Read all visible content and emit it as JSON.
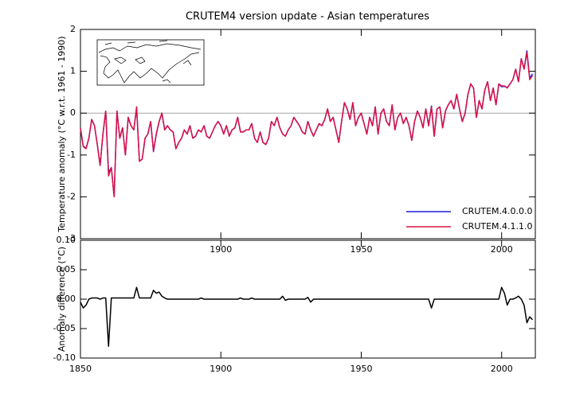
{
  "chart_data": [
    {
      "type": "line",
      "title": "CRUTEM4 version update - Asian temperatures",
      "y_label": "Temperature anomaly (°C w.r.t. 1961 - 1990)",
      "x": [
        1850,
        1851,
        1852,
        1853,
        1854,
        1855,
        1856,
        1857,
        1858,
        1859,
        1860,
        1861,
        1862,
        1863,
        1864,
        1865,
        1866,
        1867,
        1868,
        1869,
        1870,
        1871,
        1872,
        1873,
        1874,
        1875,
        1876,
        1877,
        1878,
        1879,
        1880,
        1881,
        1882,
        1883,
        1884,
        1885,
        1886,
        1887,
        1888,
        1889,
        1890,
        1891,
        1892,
        1893,
        1894,
        1895,
        1896,
        1897,
        1898,
        1899,
        1900,
        1901,
        1902,
        1903,
        1904,
        1905,
        1906,
        1907,
        1908,
        1909,
        1910,
        1911,
        1912,
        1913,
        1914,
        1915,
        1916,
        1917,
        1918,
        1919,
        1920,
        1921,
        1922,
        1923,
        1924,
        1925,
        1926,
        1927,
        1928,
        1929,
        1930,
        1931,
        1932,
        1933,
        1934,
        1935,
        1936,
        1937,
        1938,
        1939,
        1940,
        1941,
        1942,
        1943,
        1944,
        1945,
        1946,
        1947,
        1948,
        1949,
        1950,
        1951,
        1952,
        1953,
        1954,
        1955,
        1956,
        1957,
        1958,
        1959,
        1960,
        1961,
        1962,
        1963,
        1964,
        1965,
        1966,
        1967,
        1968,
        1969,
        1970,
        1971,
        1972,
        1973,
        1974,
        1975,
        1976,
        1977,
        1978,
        1979,
        1980,
        1981,
        1982,
        1983,
        1984,
        1985,
        1986,
        1987,
        1988,
        1989,
        1990,
        1991,
        1992,
        1993,
        1994,
        1995,
        1996,
        1997,
        1998,
        1999,
        2000,
        2001,
        2002,
        2003,
        2004,
        2005,
        2006,
        2007,
        2008,
        2009,
        2010,
        2011
      ],
      "series": [
        {
          "name": "CRUTEM.4.0.0.0",
          "color": "#1f1fdd",
          "values": [
            -0.36,
            -0.79,
            -0.84,
            -0.6,
            -0.15,
            -0.3,
            -0.75,
            -1.25,
            -0.5,
            0.05,
            -1.42,
            -1.3,
            -2.0,
            0.05,
            -0.6,
            -0.35,
            -1.0,
            -0.1,
            -0.3,
            -0.4,
            0.13,
            -1.15,
            -1.1,
            -0.6,
            -0.5,
            -0.2,
            -0.92,
            -0.51,
            -0.21,
            0.0,
            -0.4,
            -0.3,
            -0.4,
            -0.45,
            -0.85,
            -0.7,
            -0.6,
            -0.4,
            -0.5,
            -0.3,
            -0.6,
            -0.55,
            -0.4,
            -0.45,
            -0.3,
            -0.55,
            -0.6,
            -0.45,
            -0.3,
            -0.2,
            -0.3,
            -0.5,
            -0.3,
            -0.55,
            -0.4,
            -0.35,
            -0.1,
            -0.45,
            -0.45,
            -0.4,
            -0.4,
            -0.25,
            -0.6,
            -0.7,
            -0.45,
            -0.7,
            -0.75,
            -0.6,
            -0.2,
            -0.3,
            -0.1,
            -0.35,
            -0.5,
            -0.55,
            -0.4,
            -0.3,
            -0.1,
            -0.2,
            -0.3,
            -0.45,
            -0.5,
            -0.2,
            -0.4,
            -0.55,
            -0.4,
            -0.25,
            -0.3,
            -0.15,
            0.1,
            -0.2,
            -0.1,
            -0.4,
            -0.7,
            -0.2,
            0.25,
            0.1,
            -0.15,
            0.25,
            -0.3,
            -0.1,
            0.0,
            -0.25,
            -0.5,
            -0.1,
            -0.3,
            0.15,
            -0.5,
            0.0,
            0.1,
            -0.2,
            -0.3,
            0.2,
            -0.4,
            -0.1,
            0.0,
            -0.25,
            -0.1,
            -0.3,
            -0.65,
            -0.2,
            0.05,
            -0.1,
            -0.35,
            0.1,
            -0.3,
            0.17,
            -0.55,
            0.1,
            0.15,
            -0.35,
            0.05,
            0.2,
            0.3,
            0.1,
            0.45,
            0.1,
            -0.2,
            0.0,
            0.45,
            0.7,
            0.6,
            -0.1,
            0.3,
            0.1,
            0.55,
            0.75,
            0.3,
            0.6,
            0.2,
            0.7,
            0.63,
            0.64,
            0.61,
            0.7,
            0.8,
            1.05,
            0.75,
            1.3,
            1.06,
            1.49,
            0.83,
            0.94
          ]
        },
        {
          "name": "CRUTEM.4.1.1.0",
          "color": "#dd1144",
          "values": [
            -0.36,
            -0.8,
            -0.85,
            -0.6,
            -0.15,
            -0.3,
            -0.75,
            -1.25,
            -0.5,
            0.05,
            -1.5,
            -1.3,
            -2.0,
            0.05,
            -0.6,
            -0.35,
            -1.0,
            -0.1,
            -0.3,
            -0.4,
            0.15,
            -1.15,
            -1.1,
            -0.6,
            -0.5,
            -0.2,
            -0.9,
            -0.5,
            -0.2,
            0.0,
            -0.4,
            -0.3,
            -0.4,
            -0.45,
            -0.85,
            -0.7,
            -0.6,
            -0.4,
            -0.5,
            -0.3,
            -0.6,
            -0.55,
            -0.4,
            -0.45,
            -0.3,
            -0.55,
            -0.6,
            -0.45,
            -0.3,
            -0.2,
            -0.3,
            -0.5,
            -0.3,
            -0.55,
            -0.4,
            -0.35,
            -0.1,
            -0.45,
            -0.45,
            -0.4,
            -0.4,
            -0.25,
            -0.6,
            -0.7,
            -0.45,
            -0.7,
            -0.75,
            -0.6,
            -0.2,
            -0.3,
            -0.1,
            -0.35,
            -0.5,
            -0.55,
            -0.4,
            -0.3,
            -0.1,
            -0.2,
            -0.3,
            -0.45,
            -0.5,
            -0.2,
            -0.4,
            -0.55,
            -0.4,
            -0.25,
            -0.3,
            -0.15,
            0.1,
            -0.2,
            -0.1,
            -0.4,
            -0.7,
            -0.2,
            0.25,
            0.1,
            -0.15,
            0.25,
            -0.3,
            -0.1,
            0.0,
            -0.25,
            -0.5,
            -0.1,
            -0.3,
            0.15,
            -0.5,
            0.0,
            0.1,
            -0.2,
            -0.3,
            0.2,
            -0.4,
            -0.1,
            0.0,
            -0.25,
            -0.1,
            -0.3,
            -0.65,
            -0.2,
            0.05,
            -0.1,
            -0.35,
            0.1,
            -0.3,
            0.15,
            -0.55,
            0.1,
            0.15,
            -0.35,
            0.05,
            0.2,
            0.3,
            0.1,
            0.45,
            0.1,
            -0.2,
            0.0,
            0.45,
            0.7,
            0.6,
            -0.1,
            0.3,
            0.1,
            0.55,
            0.75,
            0.3,
            0.6,
            0.2,
            0.7,
            0.65,
            0.65,
            0.6,
            0.7,
            0.8,
            1.05,
            0.75,
            1.3,
            1.05,
            1.45,
            0.8,
            0.9
          ]
        }
      ],
      "xlim": [
        1850,
        2012
      ],
      "xticks": [
        1900,
        1950,
        2000
      ],
      "ylim": [
        -3,
        2
      ],
      "yticks": [
        -3,
        -2,
        -1,
        0,
        1,
        2
      ],
      "zero_line": true,
      "legend": "lower right"
    },
    {
      "type": "line",
      "y_label": "Anomaly difference (°C)",
      "x": [
        1850,
        1851,
        1852,
        1853,
        1854,
        1855,
        1856,
        1857,
        1858,
        1859,
        1860,
        1861,
        1862,
        1863,
        1864,
        1865,
        1866,
        1867,
        1868,
        1869,
        1870,
        1871,
        1872,
        1873,
        1874,
        1875,
        1876,
        1877,
        1878,
        1879,
        1880,
        1881,
        1882,
        1883,
        1884,
        1885,
        1886,
        1887,
        1888,
        1889,
        1890,
        1891,
        1892,
        1893,
        1894,
        1895,
        1896,
        1897,
        1898,
        1899,
        1900,
        1901,
        1902,
        1903,
        1904,
        1905,
        1906,
        1907,
        1908,
        1909,
        1910,
        1911,
        1912,
        1913,
        1914,
        1915,
        1916,
        1917,
        1918,
        1919,
        1920,
        1921,
        1922,
        1923,
        1924,
        1925,
        1926,
        1927,
        1928,
        1929,
        1930,
        1931,
        1932,
        1933,
        1934,
        1935,
        1936,
        1937,
        1938,
        1939,
        1940,
        1941,
        1942,
        1943,
        1944,
        1945,
        1946,
        1947,
        1948,
        1949,
        1950,
        1951,
        1952,
        1953,
        1954,
        1955,
        1956,
        1957,
        1958,
        1959,
        1960,
        1961,
        1962,
        1963,
        1964,
        1965,
        1966,
        1967,
        1968,
        1969,
        1970,
        1971,
        1972,
        1973,
        1974,
        1975,
        1976,
        1977,
        1978,
        1979,
        1980,
        1981,
        1982,
        1983,
        1984,
        1985,
        1986,
        1987,
        1988,
        1989,
        1990,
        1991,
        1992,
        1993,
        1994,
        1995,
        1996,
        1997,
        1998,
        1999,
        2000,
        2001,
        2002,
        2003,
        2004,
        2005,
        2006,
        2007,
        2008,
        2009,
        2010,
        2011
      ],
      "series": [
        {
          "color": "#000000",
          "values": [
            -0.005,
            -0.015,
            -0.01,
            0.0,
            0.002,
            0.002,
            0.002,
            0.0,
            0.002,
            0.002,
            -0.08,
            0.002,
            0.002,
            0.002,
            0.002,
            0.002,
            0.002,
            0.002,
            0.002,
            0.002,
            0.02,
            0.002,
            0.002,
            0.002,
            0.002,
            0.002,
            0.015,
            0.01,
            0.012,
            0.005,
            0.002,
            0.0,
            0.0,
            0.0,
            0.0,
            0.0,
            0.0,
            0.0,
            0.0,
            0.0,
            0.0,
            0.0,
            0.0,
            0.002,
            0.0,
            0.0,
            0.0,
            0.0,
            0.0,
            0.0,
            0.0,
            0.0,
            0.0,
            0.0,
            0.0,
            0.0,
            0.0,
            0.002,
            0.0,
            0.0,
            0.0,
            0.002,
            0.0,
            0.0,
            0.0,
            0.0,
            0.0,
            0.0,
            0.0,
            0.0,
            0.0,
            0.0,
            0.005,
            -0.002,
            0.0,
            0.0,
            0.0,
            0.0,
            0.0,
            0.0,
            0.0,
            0.003,
            -0.005,
            0.0,
            0.0,
            0.0,
            0.0,
            0.0,
            0.0,
            0.0,
            0.0,
            0.0,
            0.0,
            0.0,
            0.0,
            0.0,
            0.0,
            0.0,
            0.0,
            0.0,
            0.0,
            0.0,
            0.0,
            0.0,
            0.0,
            0.0,
            0.0,
            0.0,
            0.0,
            0.0,
            0.0,
            0.0,
            0.0,
            0.0,
            0.0,
            0.0,
            0.0,
            0.0,
            0.0,
            0.0,
            0.0,
            0.0,
            0.0,
            0.0,
            0.0,
            -0.015,
            0.0,
            0.0,
            0.0,
            0.0,
            0.0,
            0.0,
            0.0,
            0.0,
            0.0,
            0.0,
            0.0,
            0.0,
            0.0,
            0.0,
            0.0,
            0.0,
            0.0,
            0.0,
            0.0,
            0.0,
            0.0,
            0.0,
            0.0,
            0.0,
            0.02,
            0.01,
            -0.01,
            0.0,
            0.0,
            0.002,
            0.005,
            0.0,
            -0.01,
            -0.04,
            -0.03,
            -0.035
          ]
        }
      ],
      "xlim": [
        1850,
        2012
      ],
      "xticks": [
        1850,
        1900,
        1950,
        2000
      ],
      "ylim": [
        -0.1,
        0.1
      ],
      "yticks": [
        {
          "value": -0.1,
          "label": "-0.10"
        },
        {
          "value": -0.05,
          "label": "-0.05"
        },
        {
          "value": 0,
          "label": "0.00"
        },
        {
          "value": 0.05,
          "label": "0.05"
        },
        {
          "value": 0.1,
          "label": "0.10"
        }
      ]
    }
  ]
}
